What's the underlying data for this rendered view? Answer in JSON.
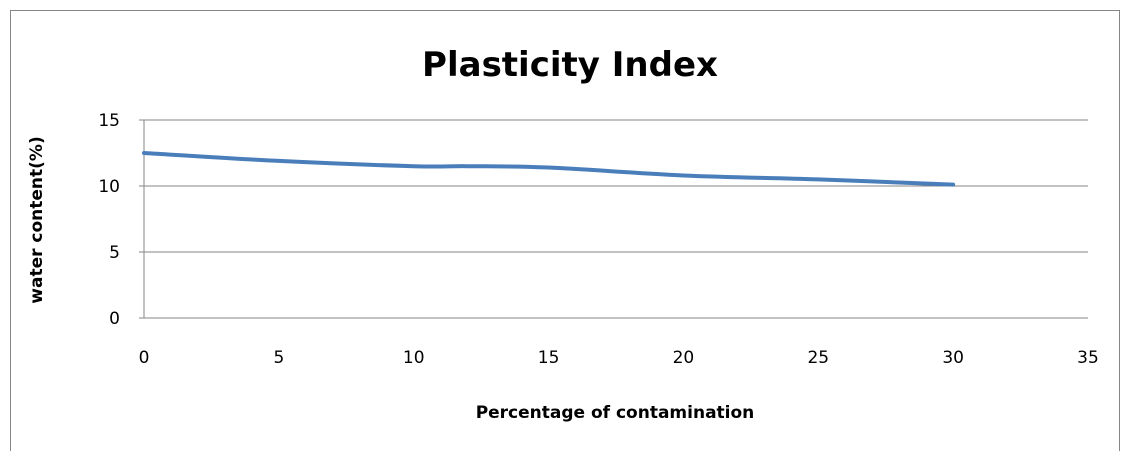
{
  "chart_data": {
    "type": "line",
    "title": "Plasticity Index",
    "xlabel": "Percentage of contamination",
    "ylabel": "water content(%)",
    "xlim": [
      0,
      35
    ],
    "ylim": [
      0,
      15
    ],
    "x_ticks": [
      "0",
      "5",
      "10",
      "15",
      "20",
      "25",
      "30",
      "35"
    ],
    "y_ticks": [
      "0",
      "5",
      "10",
      "15"
    ],
    "grid": true,
    "legend": "none",
    "series": [
      {
        "color": "#4a7ebb",
        "x": [
          0,
          5,
          10,
          12,
          15,
          20,
          25,
          30
        ],
        "y": [
          12.5,
          11.9,
          11.5,
          11.5,
          11.4,
          10.8,
          10.5,
          10.1
        ]
      }
    ]
  }
}
